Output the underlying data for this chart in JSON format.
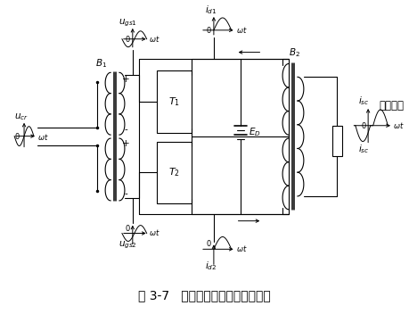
{
  "title": "图 3-7   双场效应管推挽功率放大器",
  "bg_color": "#ffffff",
  "line_color": "#000000",
  "title_fontsize": 10,
  "label_fontsize": 7.5
}
